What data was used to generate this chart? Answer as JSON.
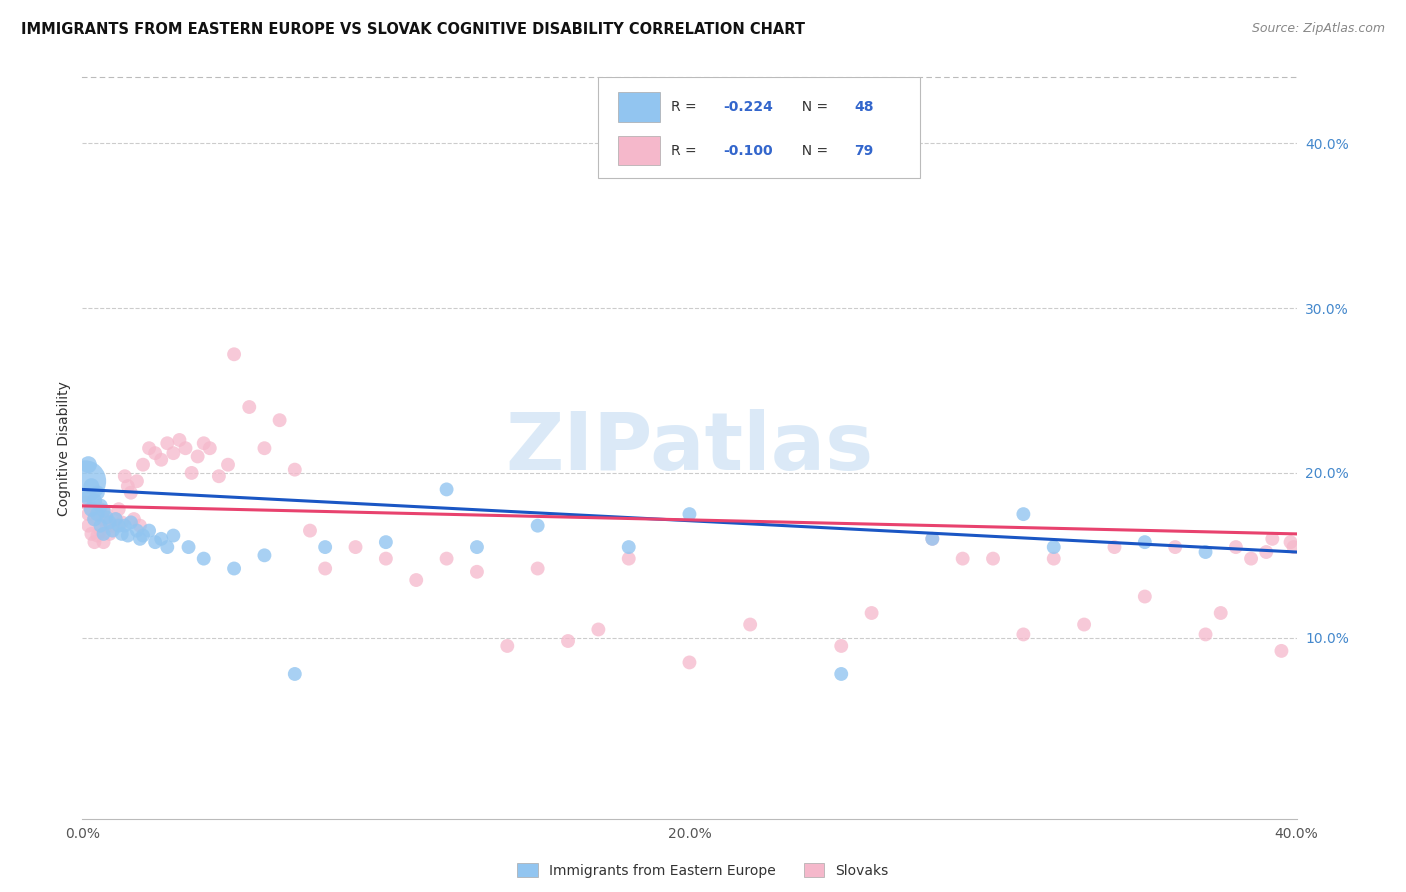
{
  "title": "IMMIGRANTS FROM EASTERN EUROPE VS SLOVAK COGNITIVE DISABILITY CORRELATION CHART",
  "source": "Source: ZipAtlas.com",
  "ylabel": "Cognitive Disability",
  "xlim": [
    0.0,
    0.4
  ],
  "ylim": [
    -0.01,
    0.44
  ],
  "xticks": [
    0.0,
    0.1,
    0.2,
    0.3,
    0.4
  ],
  "yticks_right": [
    0.1,
    0.2,
    0.3,
    0.4
  ],
  "xtick_labels": [
    "0.0%",
    "",
    "20.0%",
    "",
    "40.0%"
  ],
  "ytick_labels_right": [
    "10.0%",
    "20.0%",
    "30.0%",
    "40.0%"
  ],
  "blue_R": "-0.224",
  "blue_N": "48",
  "pink_R": "-0.100",
  "pink_N": "79",
  "blue_color": "#92C5F0",
  "pink_color": "#F5B8CB",
  "blue_line_color": "#1A56C4",
  "pink_line_color": "#E8426E",
  "legend_label_blue": "Immigrants from Eastern Europe",
  "legend_label_pink": "Slovaks",
  "watermark": "ZIPatlas",
  "blue_line_x0": 0.0,
  "blue_line_y0": 0.19,
  "blue_line_x1": 0.4,
  "blue_line_y1": 0.152,
  "pink_line_x0": 0.0,
  "pink_line_y0": 0.18,
  "pink_line_x1": 0.4,
  "pink_line_y1": 0.163,
  "blue_x": [
    0.001,
    0.002,
    0.002,
    0.003,
    0.003,
    0.004,
    0.004,
    0.005,
    0.005,
    0.006,
    0.006,
    0.007,
    0.007,
    0.008,
    0.009,
    0.01,
    0.011,
    0.012,
    0.013,
    0.014,
    0.015,
    0.016,
    0.018,
    0.019,
    0.02,
    0.022,
    0.024,
    0.026,
    0.028,
    0.03,
    0.035,
    0.04,
    0.05,
    0.06,
    0.07,
    0.08,
    0.1,
    0.12,
    0.13,
    0.15,
    0.18,
    0.2,
    0.25,
    0.28,
    0.31,
    0.32,
    0.35,
    0.37
  ],
  "blue_y": [
    0.195,
    0.205,
    0.185,
    0.192,
    0.178,
    0.183,
    0.172,
    0.188,
    0.175,
    0.18,
    0.168,
    0.177,
    0.163,
    0.173,
    0.17,
    0.165,
    0.172,
    0.168,
    0.163,
    0.168,
    0.162,
    0.17,
    0.165,
    0.16,
    0.162,
    0.165,
    0.158,
    0.16,
    0.155,
    0.162,
    0.155,
    0.148,
    0.142,
    0.15,
    0.078,
    0.155,
    0.158,
    0.19,
    0.155,
    0.168,
    0.155,
    0.175,
    0.078,
    0.16,
    0.175,
    0.155,
    0.158,
    0.152
  ],
  "blue_sizes": [
    900,
    150,
    130,
    130,
    120,
    120,
    110,
    110,
    110,
    110,
    100,
    100,
    100,
    100,
    100,
    100,
    100,
    100,
    100,
    100,
    100,
    100,
    100,
    100,
    100,
    100,
    100,
    100,
    100,
    100,
    100,
    100,
    100,
    100,
    100,
    100,
    100,
    100,
    100,
    100,
    100,
    100,
    100,
    100,
    100,
    100,
    100,
    100
  ],
  "pink_x": [
    0.001,
    0.002,
    0.002,
    0.003,
    0.003,
    0.004,
    0.004,
    0.005,
    0.005,
    0.006,
    0.006,
    0.007,
    0.007,
    0.008,
    0.008,
    0.009,
    0.01,
    0.011,
    0.012,
    0.013,
    0.014,
    0.015,
    0.016,
    0.017,
    0.018,
    0.019,
    0.02,
    0.022,
    0.024,
    0.026,
    0.028,
    0.03,
    0.032,
    0.034,
    0.036,
    0.038,
    0.04,
    0.042,
    0.045,
    0.048,
    0.05,
    0.055,
    0.06,
    0.065,
    0.07,
    0.075,
    0.08,
    0.09,
    0.1,
    0.11,
    0.12,
    0.13,
    0.14,
    0.15,
    0.16,
    0.17,
    0.18,
    0.2,
    0.22,
    0.25,
    0.26,
    0.28,
    0.29,
    0.3,
    0.31,
    0.32,
    0.33,
    0.34,
    0.35,
    0.36,
    0.37,
    0.375,
    0.38,
    0.385,
    0.39,
    0.392,
    0.395,
    0.398,
    0.399
  ],
  "pink_y": [
    0.182,
    0.175,
    0.168,
    0.178,
    0.163,
    0.172,
    0.158,
    0.175,
    0.162,
    0.178,
    0.165,
    0.172,
    0.158,
    0.168,
    0.175,
    0.163,
    0.168,
    0.172,
    0.178,
    0.17,
    0.198,
    0.192,
    0.188,
    0.172,
    0.195,
    0.168,
    0.205,
    0.215,
    0.212,
    0.208,
    0.218,
    0.212,
    0.22,
    0.215,
    0.2,
    0.21,
    0.218,
    0.215,
    0.198,
    0.205,
    0.272,
    0.24,
    0.215,
    0.232,
    0.202,
    0.165,
    0.142,
    0.155,
    0.148,
    0.135,
    0.148,
    0.14,
    0.095,
    0.142,
    0.098,
    0.105,
    0.148,
    0.085,
    0.108,
    0.095,
    0.115,
    0.16,
    0.148,
    0.148,
    0.102,
    0.148,
    0.108,
    0.155,
    0.125,
    0.155,
    0.102,
    0.115,
    0.155,
    0.148,
    0.152,
    0.16,
    0.092,
    0.158,
    0.155
  ]
}
